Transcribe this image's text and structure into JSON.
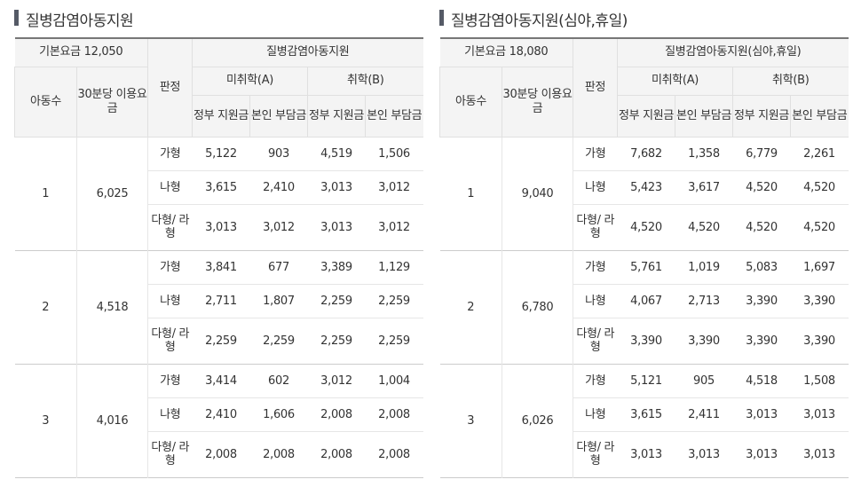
{
  "tables": [
    {
      "title": "질병감염아동지원",
      "base_fee": "기본요금 12,050",
      "section_header": "질병감염아동지원",
      "headers": {
        "children": "아동수",
        "fee30": "30분당 이용요금",
        "judgment": "판정",
        "group_a": "미취학(A)",
        "group_b": "취학(B)",
        "gov": "정부 지원금",
        "self": "본인 부담금"
      },
      "groups": [
        {
          "count": "1",
          "fee": "6,025",
          "rows": [
            {
              "type": "가형",
              "a_gov": "5,122",
              "a_self": "903",
              "b_gov": "4,519",
              "b_self": "1,506"
            },
            {
              "type": "나형",
              "a_gov": "3,615",
              "a_self": "2,410",
              "b_gov": "3,013",
              "b_self": "3,012"
            },
            {
              "type": "다형/ 라형",
              "a_gov": "3,013",
              "a_self": "3,012",
              "b_gov": "3,013",
              "b_self": "3,012"
            }
          ]
        },
        {
          "count": "2",
          "fee": "4,518",
          "rows": [
            {
              "type": "가형",
              "a_gov": "3,841",
              "a_self": "677",
              "b_gov": "3,389",
              "b_self": "1,129"
            },
            {
              "type": "나형",
              "a_gov": "2,711",
              "a_self": "1,807",
              "b_gov": "2,259",
              "b_self": "2,259"
            },
            {
              "type": "다형/ 라형",
              "a_gov": "2,259",
              "a_self": "2,259",
              "b_gov": "2,259",
              "b_self": "2,259"
            }
          ]
        },
        {
          "count": "3",
          "fee": "4,016",
          "rows": [
            {
              "type": "가형",
              "a_gov": "3,414",
              "a_self": "602",
              "b_gov": "3,012",
              "b_self": "1,004"
            },
            {
              "type": "나형",
              "a_gov": "2,410",
              "a_self": "1,606",
              "b_gov": "2,008",
              "b_self": "2,008"
            },
            {
              "type": "다형/ 라형",
              "a_gov": "2,008",
              "a_self": "2,008",
              "b_gov": "2,008",
              "b_self": "2,008"
            }
          ]
        }
      ]
    },
    {
      "title": "질병감염아동지원(심야,휴일)",
      "base_fee": "기본요금 18,080",
      "section_header": "질병감염아동지원(심야,휴일)",
      "headers": {
        "children": "아동수",
        "fee30": "30분당 이용요금",
        "judgment": "판정",
        "group_a": "미취학(A)",
        "group_b": "취학(B)",
        "gov": "정부 지원금",
        "self": "본인 부담금"
      },
      "groups": [
        {
          "count": "1",
          "fee": "9,040",
          "rows": [
            {
              "type": "가형",
              "a_gov": "7,682",
              "a_self": "1,358",
              "b_gov": "6,779",
              "b_self": "2,261"
            },
            {
              "type": "나형",
              "a_gov": "5,423",
              "a_self": "3,617",
              "b_gov": "4,520",
              "b_self": "4,520"
            },
            {
              "type": "다형/ 라형",
              "a_gov": "4,520",
              "a_self": "4,520",
              "b_gov": "4,520",
              "b_self": "4,520"
            }
          ]
        },
        {
          "count": "2",
          "fee": "6,780",
          "rows": [
            {
              "type": "가형",
              "a_gov": "5,761",
              "a_self": "1,019",
              "b_gov": "5,083",
              "b_self": "1,697"
            },
            {
              "type": "나형",
              "a_gov": "4,067",
              "a_self": "2,713",
              "b_gov": "3,390",
              "b_self": "3,390"
            },
            {
              "type": "다형/ 라형",
              "a_gov": "3,390",
              "a_self": "3,390",
              "b_gov": "3,390",
              "b_self": "3,390"
            }
          ]
        },
        {
          "count": "3",
          "fee": "6,026",
          "rows": [
            {
              "type": "가형",
              "a_gov": "5,121",
              "a_self": "905",
              "b_gov": "4,518",
              "b_self": "1,508"
            },
            {
              "type": "나형",
              "a_gov": "3,615",
              "a_self": "2,411",
              "b_gov": "3,013",
              "b_self": "3,013"
            },
            {
              "type": "다형/ 라형",
              "a_gov": "3,013",
              "a_self": "3,013",
              "b_gov": "3,013",
              "b_self": "3,013"
            }
          ]
        }
      ]
    }
  ]
}
